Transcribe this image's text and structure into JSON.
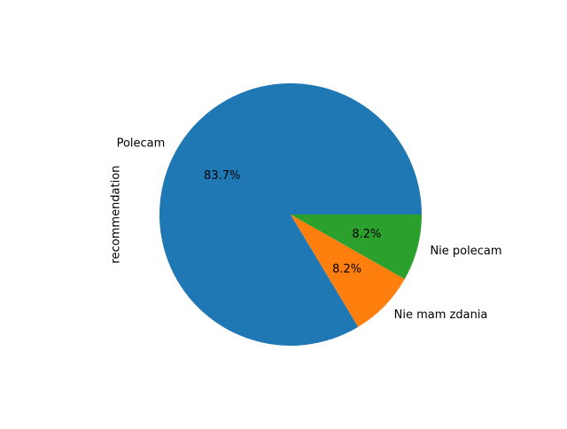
{
  "chart_data": {
    "type": "pie",
    "title": "",
    "ylabel": "recommendation",
    "slices": [
      {
        "label": "Polecam",
        "value": 83.7,
        "pct_label": "83.7%",
        "color": "#1f77b4"
      },
      {
        "label": "Nie mam zdania",
        "value": 8.2,
        "pct_label": "8.2%",
        "color": "#ff7f0e"
      },
      {
        "label": "Nie polecam",
        "value": 8.2,
        "pct_label": "8.2%",
        "color": "#2ca02c"
      }
    ],
    "start_angle_deg": 0,
    "direction": "counterclockwise"
  }
}
